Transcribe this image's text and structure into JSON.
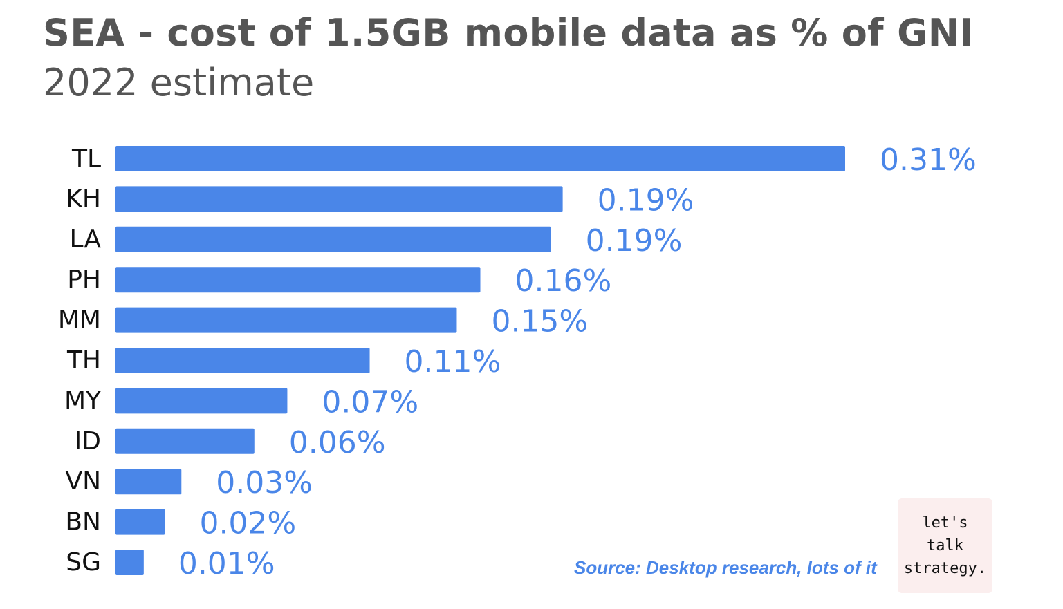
{
  "header": {
    "title": "SEA - cost of 1.5GB mobile data as % of GNI",
    "subtitle": "2022 estimate"
  },
  "chart_data": {
    "type": "bar",
    "orientation": "horizontal",
    "title": "SEA - cost of 1.5GB mobile data as % of GNI",
    "subtitle": "2022 estimate",
    "categories": [
      "TL",
      "KH",
      "LA",
      "PH",
      "MM",
      "TH",
      "MY",
      "ID",
      "VN",
      "BN",
      "SG"
    ],
    "values": [
      0.31,
      0.19,
      0.185,
      0.155,
      0.145,
      0.108,
      0.073,
      0.059,
      0.028,
      0.021,
      0.012
    ],
    "value_labels": [
      "0.31%",
      "0.19%",
      "0.19%",
      "0.16%",
      "0.15%",
      "0.11%",
      "0.07%",
      "0.06%",
      "0.03%",
      "0.02%",
      "0.01%"
    ],
    "xlabel": "",
    "ylabel": "",
    "xlim": [
      0,
      0.31
    ],
    "grid": false,
    "legend": "none",
    "bar_color": "#4a86e8",
    "label_color": "#4a86e8"
  },
  "footer": {
    "source": "Source: Desktop research, lots of it"
  },
  "logo": {
    "line1": "let's",
    "line2": "talk",
    "line3": "strategy."
  }
}
